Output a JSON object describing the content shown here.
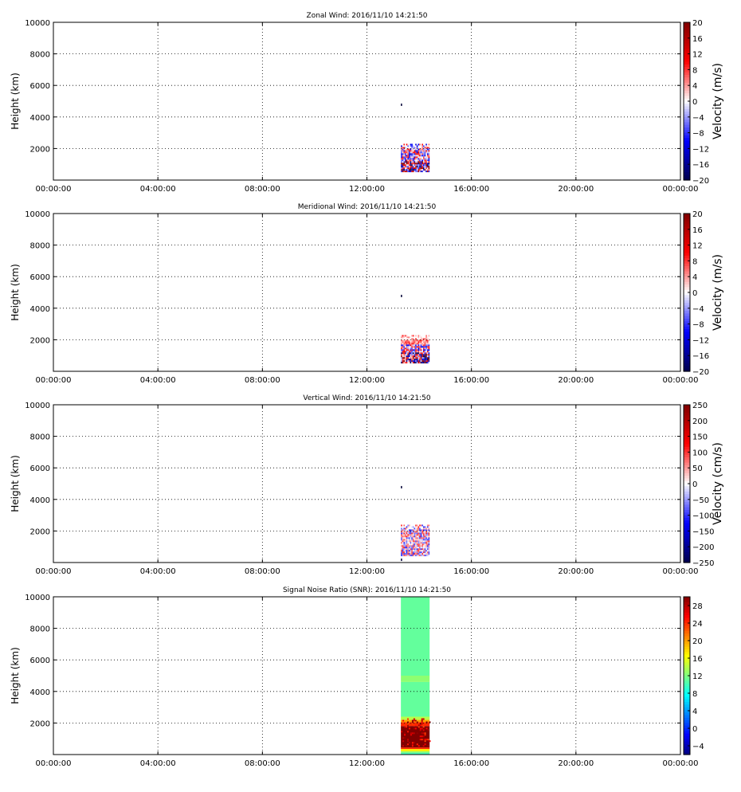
{
  "chart_data": [
    {
      "type": "heatmap",
      "title": "Zonal Wind: 2016/11/10 14:21:50",
      "ylabel": "Height (km)",
      "colorbar_label": "Velocity (m/s)",
      "colormap": "seismic",
      "xlim": [
        "00:00:00",
        "00:00:00"
      ],
      "xticks": [
        "00:00:00",
        "04:00:00",
        "08:00:00",
        "12:00:00",
        "16:00:00",
        "20:00:00",
        "00:00:00"
      ],
      "ylim": [
        0,
        10000
      ],
      "yticks": [
        2000,
        4000,
        6000,
        8000,
        10000
      ],
      "clim": [
        -20,
        20
      ],
      "cbticks": [
        20,
        16,
        12,
        8,
        4,
        0,
        -4,
        -8,
        -12,
        -16,
        -20
      ],
      "grid": true,
      "data_region": {
        "time_start_h": 13.3,
        "time_end_h": 14.4,
        "height_min": 500,
        "height_max": 2300
      },
      "isolated_points": [
        {
          "time_h": 13.3,
          "height": 4800
        }
      ]
    },
    {
      "type": "heatmap",
      "title": "Meridional Wind: 2016/11/10 14:21:50",
      "ylabel": "Height (km)",
      "colorbar_label": "Velocity (m/s)",
      "colormap": "seismic",
      "xlim": [
        "00:00:00",
        "00:00:00"
      ],
      "xticks": [
        "00:00:00",
        "04:00:00",
        "08:00:00",
        "12:00:00",
        "16:00:00",
        "20:00:00",
        "00:00:00"
      ],
      "ylim": [
        0,
        10000
      ],
      "yticks": [
        2000,
        4000,
        6000,
        8000,
        10000
      ],
      "clim": [
        -20,
        20
      ],
      "cbticks": [
        20,
        16,
        12,
        8,
        4,
        0,
        -4,
        -8,
        -12,
        -16,
        -20
      ],
      "grid": true,
      "data_region": {
        "time_start_h": 13.3,
        "time_end_h": 14.4,
        "height_min": 500,
        "height_max": 2300
      },
      "isolated_points": [
        {
          "time_h": 13.3,
          "height": 4800
        }
      ]
    },
    {
      "type": "heatmap",
      "title": "Vertical Wind: 2016/11/10 14:21:50",
      "ylabel": "Height (km)",
      "colorbar_label": "Velocity (cm/s)",
      "colormap": "seismic",
      "xlim": [
        "00:00:00",
        "00:00:00"
      ],
      "xticks": [
        "00:00:00",
        "04:00:00",
        "08:00:00",
        "12:00:00",
        "16:00:00",
        "20:00:00",
        "00:00:00"
      ],
      "ylim": [
        0,
        10000
      ],
      "yticks": [
        2000,
        4000,
        6000,
        8000,
        10000
      ],
      "clim": [
        -250,
        250
      ],
      "cbticks": [
        250,
        200,
        150,
        100,
        50,
        0,
        -50,
        -100,
        -150,
        -200,
        -250
      ],
      "grid": true,
      "data_region": {
        "time_start_h": 13.3,
        "time_end_h": 14.4,
        "height_min": 400,
        "height_max": 2400
      },
      "isolated_points": [
        {
          "time_h": 13.3,
          "height": 4800
        },
        {
          "time_h": 13.3,
          "height": 200
        }
      ]
    },
    {
      "type": "heatmap",
      "title": "Signal Noise Ratio (SNR): 2016/11/10 14:21:50",
      "ylabel": "Height (km)",
      "colorbar_label": "",
      "colormap": "jet",
      "xlim": [
        "00:00:00",
        "00:00:00"
      ],
      "xticks": [
        "00:00:00",
        "04:00:00",
        "08:00:00",
        "12:00:00",
        "16:00:00",
        "20:00:00",
        "00:00:00"
      ],
      "ylim": [
        0,
        10000
      ],
      "yticks": [
        2000,
        4000,
        6000,
        8000,
        10000
      ],
      "clim": [
        -6,
        30
      ],
      "cbticks": [
        28,
        24,
        20,
        16,
        12,
        8,
        4,
        0,
        -4
      ],
      "grid": true,
      "data_region": {
        "time_start_h": 13.3,
        "time_end_h": 14.4,
        "height_min": 0,
        "height_max": 10000
      },
      "snr_profile": [
        {
          "h0": 0,
          "h1": 100,
          "value": 10
        },
        {
          "h0": 100,
          "h1": 200,
          "value": 12
        },
        {
          "h0": 200,
          "h1": 350,
          "value": 17
        },
        {
          "h0": 350,
          "h1": 450,
          "value": 24
        },
        {
          "h0": 450,
          "h1": 1800,
          "value": 30
        },
        {
          "h0": 1800,
          "h1": 2050,
          "value": 24
        },
        {
          "h0": 2050,
          "h1": 2200,
          "value": 20
        },
        {
          "h0": 2200,
          "h1": 2400,
          "value": 14
        },
        {
          "h0": 2400,
          "h1": 4600,
          "value": 11
        },
        {
          "h0": 4600,
          "h1": 5000,
          "value": 12.5
        },
        {
          "h0": 5000,
          "h1": 10000,
          "value": 11
        }
      ]
    }
  ]
}
